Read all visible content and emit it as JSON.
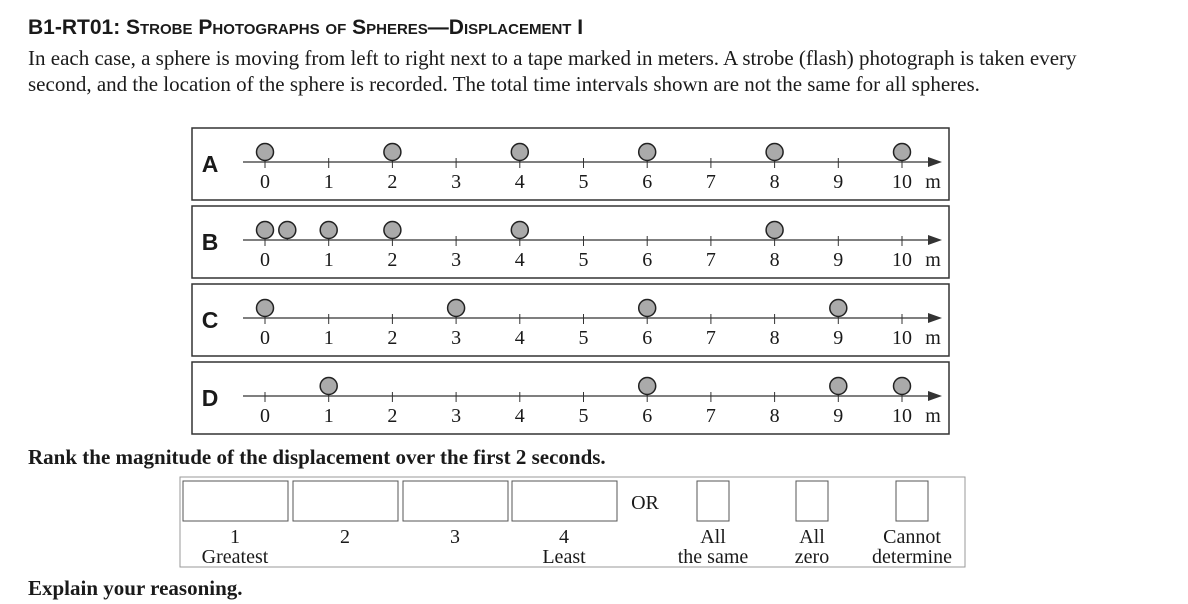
{
  "header": {
    "title": "B1-RT01: Strobe Photographs of Spheres—Displacement I"
  },
  "intro": "In each case, a sphere is moving from left to right next to a tape marked in meters. A strobe (flash) photograph is taken every second, and the location of the sphere is recorded. The total time intervals shown are not the same for all spheres.",
  "panels": [
    {
      "label": "A",
      "ticks": [
        0,
        1,
        2,
        3,
        4,
        5,
        6,
        7,
        8,
        9,
        10
      ],
      "unit": "m",
      "spheres": [
        0,
        2,
        4,
        6,
        8,
        10
      ]
    },
    {
      "label": "B",
      "ticks": [
        0,
        1,
        2,
        3,
        4,
        5,
        6,
        7,
        8,
        9,
        10
      ],
      "unit": "m",
      "spheres": [
        0,
        0.35,
        1,
        2,
        4,
        8
      ]
    },
    {
      "label": "C",
      "ticks": [
        0,
        1,
        2,
        3,
        4,
        5,
        6,
        7,
        8,
        9,
        10
      ],
      "unit": "m",
      "spheres": [
        0,
        3,
        6,
        9
      ]
    },
    {
      "label": "D",
      "ticks": [
        0,
        1,
        2,
        3,
        4,
        5,
        6,
        7,
        8,
        9,
        10
      ],
      "unit": "m",
      "spheres": [
        1,
        6,
        9,
        10
      ]
    }
  ],
  "question": "Rank the magnitude of the displacement over the first 2 seconds.",
  "ranking": {
    "slots": [
      {
        "rank": "1",
        "label": "Greatest"
      },
      {
        "rank": "2"
      },
      {
        "rank": "3"
      },
      {
        "rank": "4",
        "label": "Least"
      }
    ],
    "or": "OR",
    "options": [
      {
        "line1": "All",
        "line2": "the same"
      },
      {
        "line1": "All",
        "line2": "zero"
      },
      {
        "line1": "Cannot",
        "line2": "determine"
      }
    ]
  },
  "prompt": "Explain your reasoning."
}
